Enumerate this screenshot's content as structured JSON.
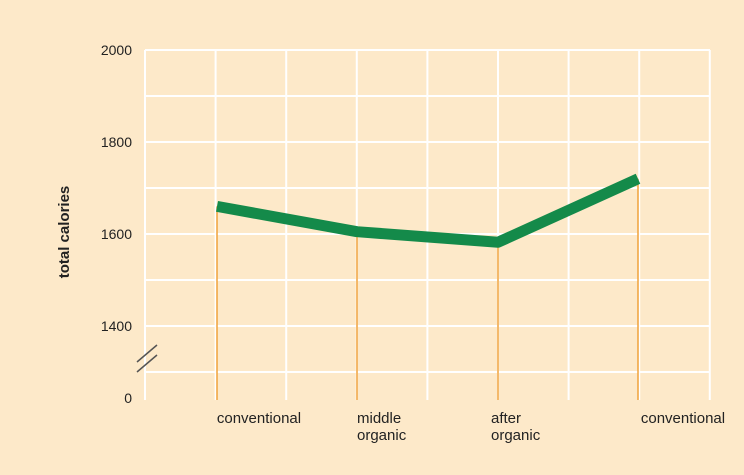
{
  "chart_data": {
    "type": "line",
    "categories": [
      "conventional",
      "middle\norganic",
      "after\norganic",
      "conventional"
    ],
    "values": [
      1660,
      1605,
      1582,
      1720
    ],
    "ylabel": "total calories",
    "ylim": [
      1300,
      2000
    ],
    "y_axis_break": true,
    "y_ticks": [
      "0",
      "1400",
      "1600",
      "1800",
      "2000"
    ],
    "grid": true,
    "colors": {
      "background": "#fde9c9",
      "grid": "#ffffff",
      "line": "#148a4a",
      "drop_lines": "#f0a23a",
      "break_marks": "#555555"
    }
  }
}
